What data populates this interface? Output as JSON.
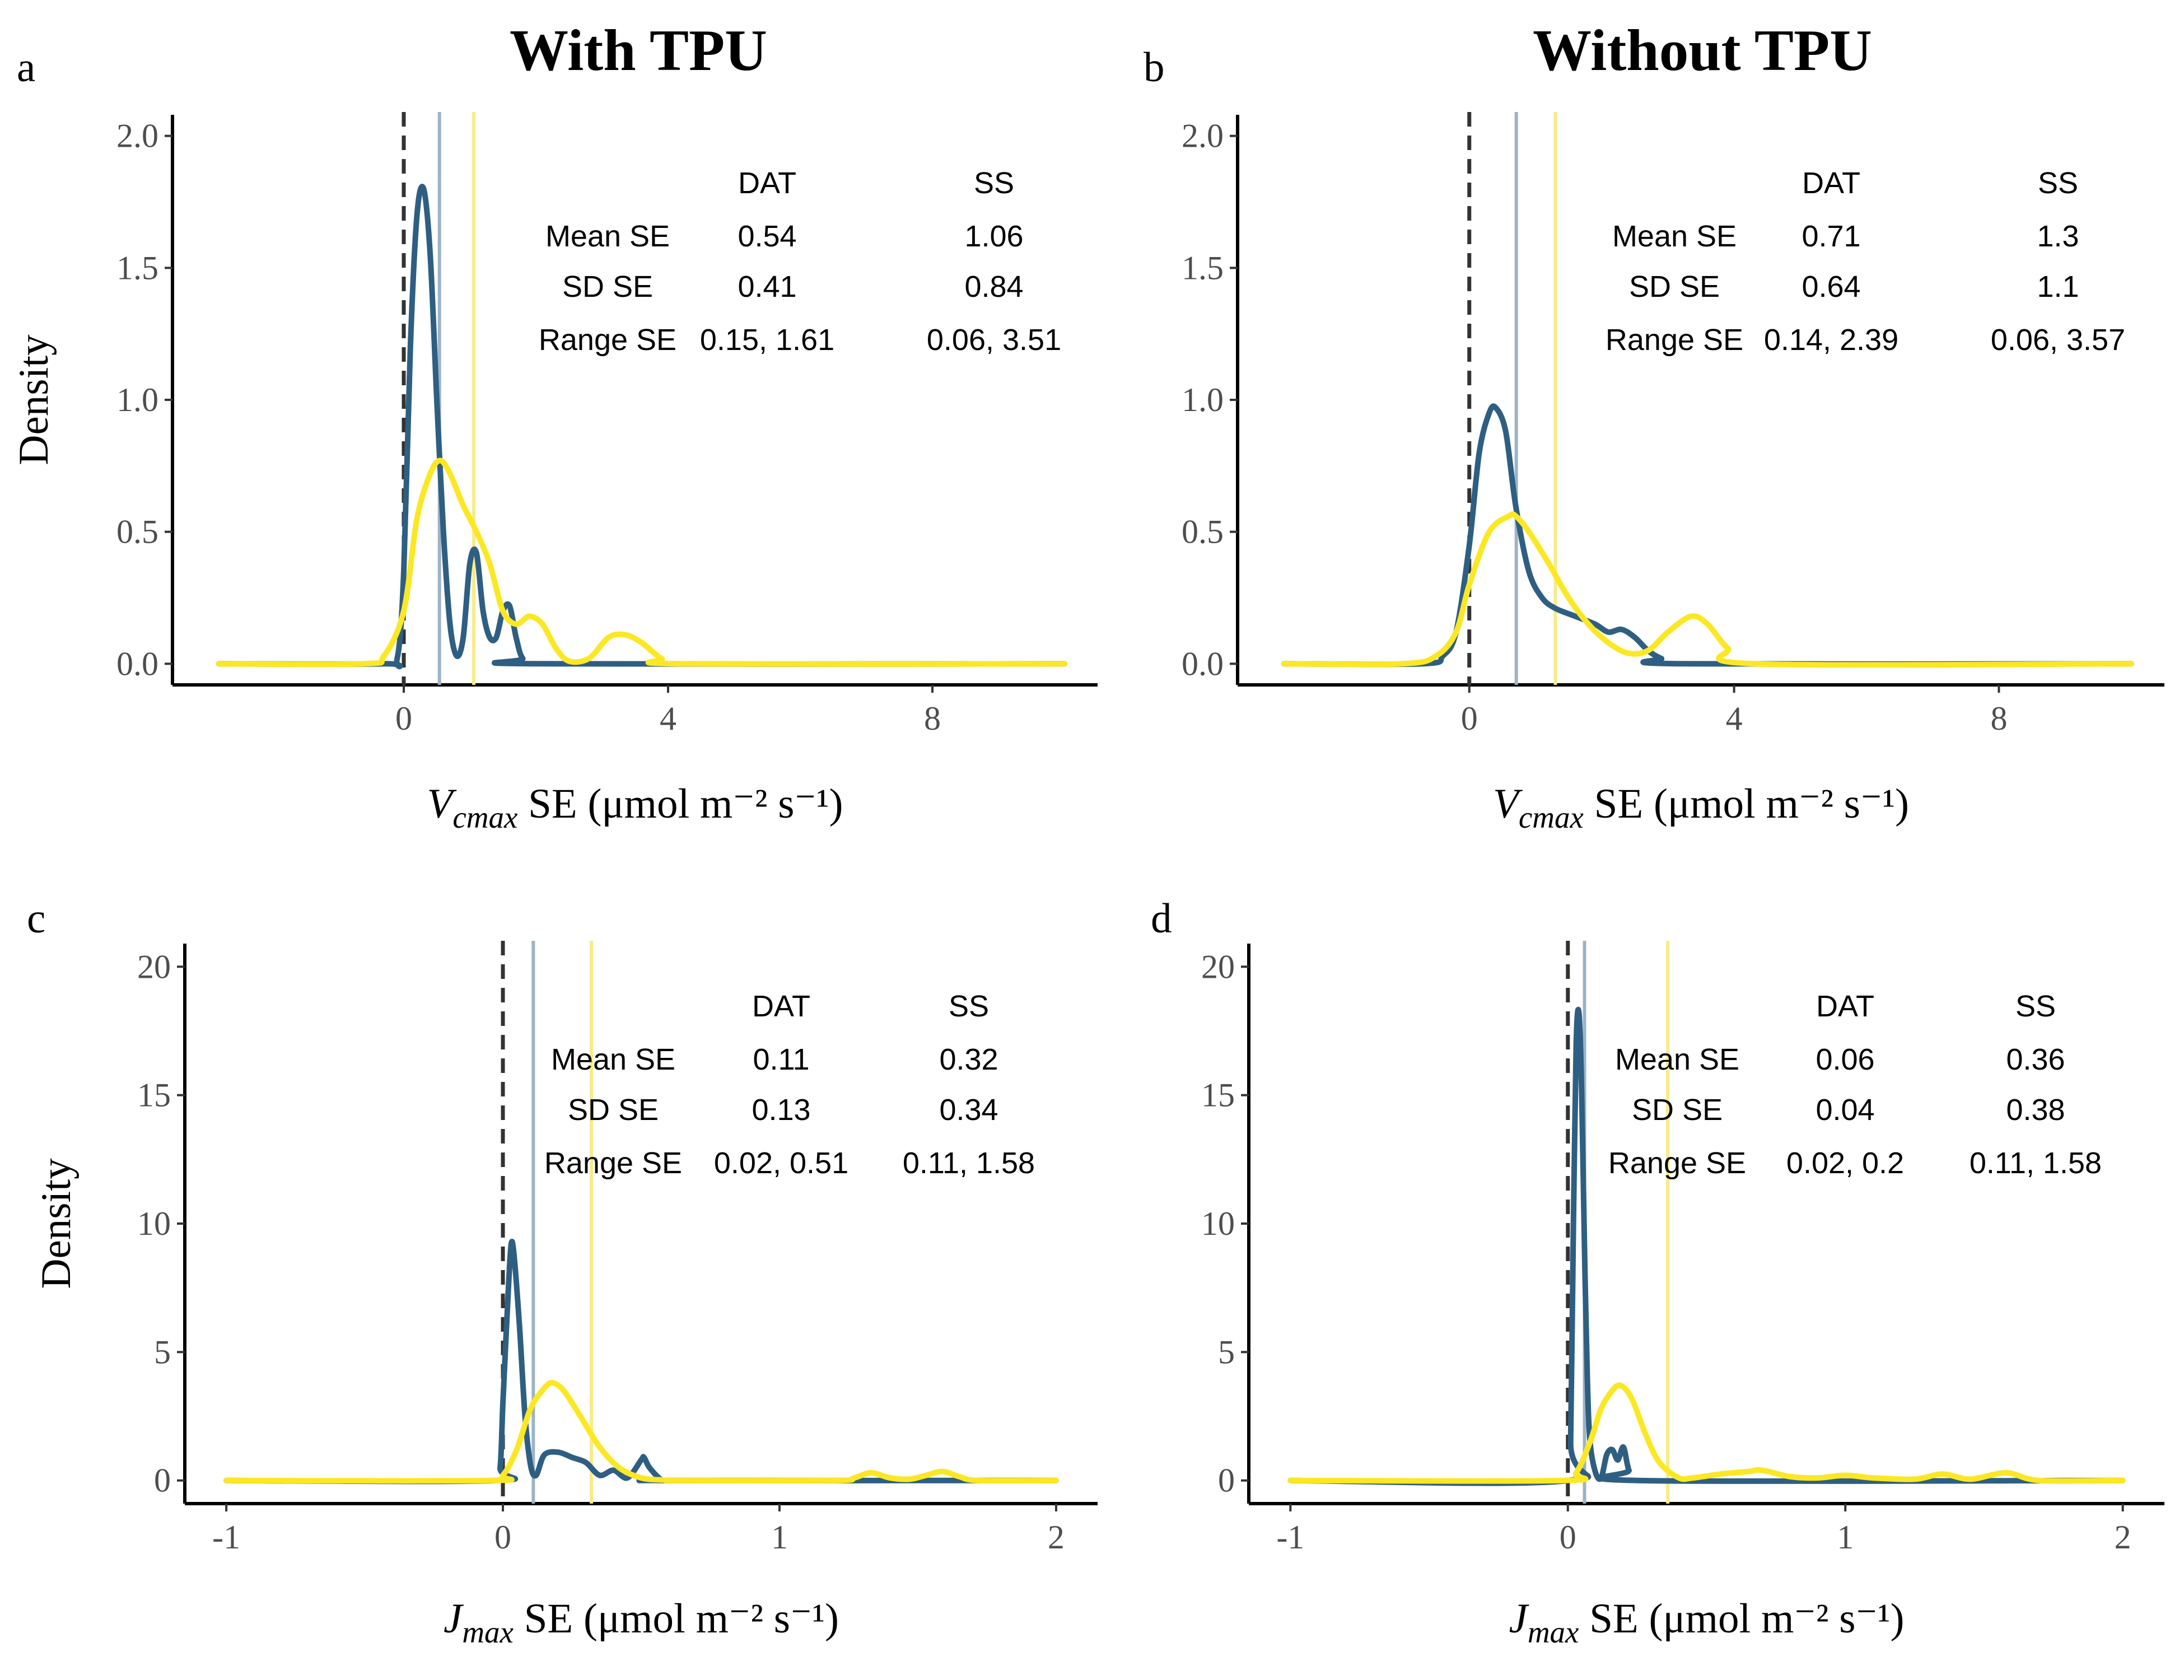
{
  "figure": {
    "column_titles": [
      "With TPU",
      "Without TPU"
    ],
    "colors": {
      "DAT": "#2e5f82",
      "SS": "#fce724",
      "DAT_mean_line": "#9db3c6",
      "SS_mean_line": "#f7eb8a",
      "zero_line": "#333333"
    },
    "table_headers": {
      "row_header": "",
      "dat": "DAT",
      "ss": "SS"
    },
    "row_labels": [
      "Mean SE",
      "SD SE",
      "Range SE"
    ]
  },
  "chart_data": [
    {
      "panel": "a",
      "type": "line",
      "title": "With TPU",
      "xlabel_var": "V",
      "xlabel_sub": "cmax",
      "xlabel_unit": "SE (μmol m⁻² s⁻¹)",
      "ylabel": "Density",
      "xlim": [
        -3.5,
        10.5
      ],
      "ylim": [
        -0.08,
        2.08
      ],
      "xticks": [
        0,
        4,
        8
      ],
      "xtick_labels": [
        "0",
        "4",
        "8"
      ],
      "yticks": [
        0,
        0.5,
        1,
        1.5,
        2
      ],
      "ytick_labels": [
        "0.0",
        "0.5",
        "1.0",
        "1.5",
        "2.0"
      ],
      "table_pos": "top-right",
      "stats": {
        "DAT": {
          "mean": "0.54",
          "sd": "0.41",
          "range": "0.15, 1.61"
        },
        "SS": {
          "mean": "1.06",
          "sd": "0.84",
          "range": "0.06, 3.51"
        }
      },
      "mean_lines": {
        "DAT": 0.54,
        "SS": 1.06
      },
      "series": [
        {
          "name": "DAT",
          "x": [
            -2.8,
            -0.3,
            -0.1,
            0.0,
            0.1,
            0.2,
            0.3,
            0.4,
            0.5,
            0.6,
            0.7,
            0.8,
            0.9,
            1.0,
            1.1,
            1.2,
            1.3,
            1.4,
            1.5,
            1.6,
            1.7,
            1.8,
            2.0,
            10.0
          ],
          "y": [
            0,
            0,
            0.02,
            0.35,
            1.2,
            1.7,
            1.8,
            1.55,
            1.0,
            0.5,
            0.15,
            0.03,
            0.1,
            0.38,
            0.42,
            0.2,
            0.1,
            0.1,
            0.2,
            0.22,
            0.1,
            0.02,
            0,
            0
          ]
        },
        {
          "name": "SS",
          "x": [
            -2.8,
            -0.6,
            -0.3,
            0.0,
            0.2,
            0.4,
            0.55,
            0.7,
            0.9,
            1.1,
            1.3,
            1.5,
            1.7,
            1.9,
            2.1,
            2.3,
            2.5,
            2.8,
            3.1,
            3.35,
            3.6,
            3.9,
            4.2,
            10.0
          ],
          "y": [
            0,
            0,
            0.03,
            0.2,
            0.55,
            0.72,
            0.77,
            0.72,
            0.6,
            0.5,
            0.38,
            0.2,
            0.15,
            0.18,
            0.15,
            0.06,
            0.01,
            0.02,
            0.1,
            0.11,
            0.08,
            0.02,
            0,
            0
          ]
        }
      ]
    },
    {
      "panel": "b",
      "type": "line",
      "title": "Without TPU",
      "xlabel_var": "V",
      "xlabel_sub": "cmax",
      "xlabel_unit": "SE (μmol m⁻² s⁻¹)",
      "ylabel": "",
      "xlim": [
        -3.5,
        10.5
      ],
      "ylim": [
        -0.08,
        2.08
      ],
      "xticks": [
        0,
        4,
        8
      ],
      "xtick_labels": [
        "0",
        "4",
        "8"
      ],
      "yticks": [
        0,
        0.5,
        1,
        1.5,
        2
      ],
      "ytick_labels": [
        "0.0",
        "0.5",
        "1.0",
        "1.5",
        "2.0"
      ],
      "table_pos": "top-right",
      "stats": {
        "DAT": {
          "mean": "0.71",
          "sd": "0.64",
          "range": "0.14, 2.39"
        },
        "SS": {
          "mean": "1.3",
          "sd": "1.1",
          "range": "0.06, 3.57"
        }
      },
      "mean_lines": {
        "DAT": 0.71,
        "SS": 1.3
      },
      "series": [
        {
          "name": "DAT",
          "x": [
            -2.8,
            -0.7,
            -0.4,
            -0.2,
            0.0,
            0.15,
            0.3,
            0.4,
            0.55,
            0.7,
            0.9,
            1.1,
            1.3,
            1.6,
            1.9,
            2.1,
            2.3,
            2.5,
            2.7,
            2.9,
            3.2,
            10.0
          ],
          "y": [
            0,
            0,
            0.03,
            0.12,
            0.45,
            0.8,
            0.95,
            0.97,
            0.88,
            0.6,
            0.35,
            0.25,
            0.21,
            0.18,
            0.15,
            0.12,
            0.13,
            0.1,
            0.05,
            0.02,
            0,
            0
          ]
        },
        {
          "name": "SS",
          "x": [
            -2.8,
            -1.0,
            -0.5,
            -0.2,
            0.0,
            0.3,
            0.6,
            0.7,
            0.9,
            1.2,
            1.5,
            1.8,
            2.1,
            2.4,
            2.7,
            3.0,
            3.35,
            3.6,
            3.9,
            4.3,
            10.0
          ],
          "y": [
            0,
            0,
            0.03,
            0.12,
            0.3,
            0.5,
            0.56,
            0.56,
            0.5,
            0.38,
            0.25,
            0.15,
            0.08,
            0.04,
            0.05,
            0.12,
            0.18,
            0.15,
            0.06,
            0,
            0
          ]
        }
      ]
    },
    {
      "panel": "c",
      "type": "line",
      "title": "",
      "xlabel_var": "J",
      "xlabel_sub": "max",
      "xlabel_unit": "SE (μmol m⁻² s⁻¹)",
      "ylabel": "Density",
      "xlim": [
        -1.15,
        2.15
      ],
      "ylim": [
        -0.9,
        20.9
      ],
      "xticks": [
        -1,
        0,
        1,
        2
      ],
      "xtick_labels": [
        "-1",
        "0",
        "1",
        "2"
      ],
      "yticks": [
        0,
        5,
        10,
        15,
        20
      ],
      "ytick_labels": [
        "0",
        "5",
        "10",
        "15",
        "20"
      ],
      "table_pos": "top-right",
      "stats": {
        "DAT": {
          "mean": "0.11",
          "sd": "0.13",
          "range": "0.02, 0.51"
        },
        "SS": {
          "mean": "0.32",
          "sd": "0.34",
          "range": "0.11, 1.58"
        }
      },
      "mean_lines": {
        "DAT": 0.11,
        "SS": 0.32
      },
      "series": [
        {
          "name": "DAT",
          "x": [
            -1.0,
            -0.03,
            -0.01,
            0.0,
            0.02,
            0.03,
            0.04,
            0.06,
            0.08,
            0.1,
            0.12,
            0.15,
            0.2,
            0.25,
            0.3,
            0.35,
            0.4,
            0.45,
            0.5,
            0.51,
            0.53,
            0.57,
            0.6,
            2.0
          ],
          "y": [
            0,
            0,
            0.5,
            3.0,
            7.5,
            9.2,
            8.8,
            6.0,
            2.5,
            0.6,
            0.2,
            1.0,
            1.1,
            0.9,
            0.7,
            0.2,
            0.4,
            0.1,
            0.8,
            0.9,
            0.5,
            0.05,
            0,
            0
          ]
        },
        {
          "name": "SS",
          "x": [
            -1.0,
            -0.05,
            0.0,
            0.05,
            0.1,
            0.15,
            0.18,
            0.22,
            0.28,
            0.35,
            0.42,
            0.5,
            0.58,
            0.65,
            1.2,
            1.27,
            1.33,
            1.4,
            1.47,
            1.53,
            1.59,
            1.65,
            1.72,
            2.0
          ],
          "y": [
            0,
            0,
            0.2,
            1.2,
            2.8,
            3.6,
            3.8,
            3.5,
            2.5,
            1.3,
            0.5,
            0.1,
            0.02,
            0,
            0,
            0.1,
            0.3,
            0.1,
            0.05,
            0.2,
            0.35,
            0.15,
            0,
            0
          ]
        }
      ]
    },
    {
      "panel": "d",
      "type": "line",
      "title": "",
      "xlabel_var": "J",
      "xlabel_sub": "max",
      "xlabel_unit": "SE (μmol m⁻² s⁻¹)",
      "ylabel": "",
      "xlim": [
        -1.15,
        2.15
      ],
      "ylim": [
        -0.9,
        20.9
      ],
      "xticks": [
        -1,
        0,
        1,
        2
      ],
      "xtick_labels": [
        "-1",
        "0",
        "1",
        "2"
      ],
      "yticks": [
        0,
        5,
        10,
        15,
        20
      ],
      "ytick_labels": [
        "0",
        "5",
        "10",
        "15",
        "20"
      ],
      "table_pos": "top-right",
      "stats": {
        "DAT": {
          "mean": "0.06",
          "sd": "0.04",
          "range": "0.02, 0.2"
        },
        "SS": {
          "mean": "0.36",
          "sd": "0.38",
          "range": "0.11, 1.58"
        }
      },
      "mean_lines": {
        "DAT": 0.06,
        "SS": 0.36
      },
      "series": [
        {
          "name": "DAT",
          "x": [
            -1.0,
            0.0,
            0.01,
            0.02,
            0.03,
            0.04,
            0.05,
            0.06,
            0.07,
            0.08,
            0.1,
            0.12,
            0.14,
            0.16,
            0.18,
            0.2,
            0.22,
            0.25,
            2.0
          ],
          "y": [
            0,
            0,
            1.5,
            10.0,
            17.0,
            18.2,
            15.0,
            9.0,
            4.0,
            1.5,
            0.3,
            0.1,
            1.0,
            1.2,
            0.8,
            1.3,
            0.4,
            0,
            0
          ]
        },
        {
          "name": "SS",
          "x": [
            -1.0,
            -0.02,
            0.03,
            0.08,
            0.12,
            0.16,
            0.19,
            0.23,
            0.28,
            0.33,
            0.4,
            0.45,
            0.55,
            0.65,
            0.7,
            0.8,
            0.9,
            1.0,
            1.1,
            1.25,
            1.35,
            1.45,
            1.58,
            1.7,
            2.0
          ],
          "y": [
            0,
            0,
            0.3,
            1.5,
            2.8,
            3.5,
            3.7,
            3.2,
            1.8,
            0.7,
            0.1,
            0.1,
            0.25,
            0.35,
            0.4,
            0.15,
            0.1,
            0.2,
            0.1,
            0.05,
            0.25,
            0.05,
            0.3,
            0,
            0
          ]
        }
      ]
    }
  ]
}
